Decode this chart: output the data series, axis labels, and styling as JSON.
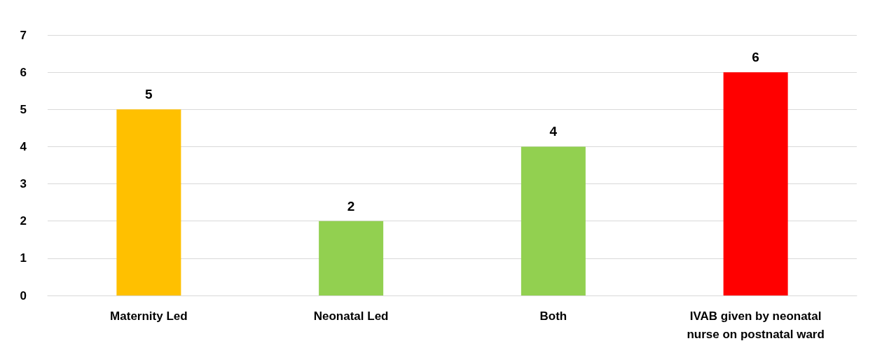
{
  "chart_data": {
    "type": "bar",
    "categories": [
      "Maternity Led",
      "Neonatal Led",
      "Both",
      "IVAB given by neonatal\nnurse on postnatal ward"
    ],
    "values": [
      5,
      2,
      4,
      6
    ],
    "colors": [
      "#ffc000",
      "#92d050",
      "#92d050",
      "#ff0000"
    ],
    "ylim": [
      0,
      7
    ],
    "yticks": [
      0,
      1,
      2,
      3,
      4,
      5,
      6,
      7
    ],
    "grid": "y",
    "data_labels": true
  }
}
